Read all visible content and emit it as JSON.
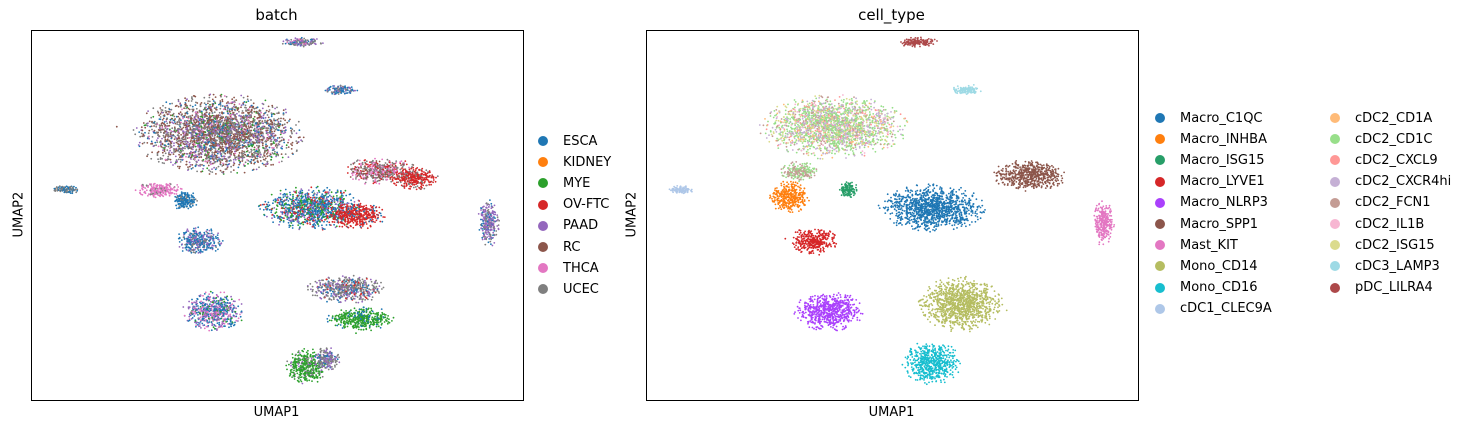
{
  "chart_data": [
    {
      "type": "scatter",
      "title": "batch",
      "xlabel": "UMAP1",
      "ylabel": "UMAP2",
      "legend_position": "right",
      "grid": false,
      "categories": [
        {
          "name": "ESCA",
          "color": "#1f77b4"
        },
        {
          "name": "KIDNEY",
          "color": "#ff7f0e"
        },
        {
          "name": "MYE",
          "color": "#2ca02c"
        },
        {
          "name": "OV-FTC",
          "color": "#d62728"
        },
        {
          "name": "PAAD",
          "color": "#9467bd"
        },
        {
          "name": "RC",
          "color": "#8c564b"
        },
        {
          "name": "THCA",
          "color": "#e377c2"
        },
        {
          "name": "UCEC",
          "color": "#7f7f7f"
        }
      ],
      "clusters": [
        {
          "x": 0.55,
          "y": 0.97,
          "rx": 0.04,
          "ry": 0.012,
          "mix": {
            "UCEC": 0.5,
            "ESCA": 0.2,
            "PAAD": 0.2,
            "THCA": 0.1
          }
        },
        {
          "x": 0.63,
          "y": 0.84,
          "rx": 0.03,
          "ry": 0.012,
          "mix": {
            "ESCA": 0.5,
            "PAAD": 0.3,
            "UCEC": 0.2
          }
        },
        {
          "x": 0.38,
          "y": 0.72,
          "rx": 0.16,
          "ry": 0.1,
          "mix": {
            "RC": 0.35,
            "UCEC": 0.3,
            "PAAD": 0.15,
            "ESCA": 0.1,
            "MYE": 0.05,
            "THCA": 0.05
          }
        },
        {
          "x": 0.71,
          "y": 0.62,
          "rx": 0.07,
          "ry": 0.035,
          "mix": {
            "UCEC": 0.35,
            "THCA": 0.25,
            "OV-FTC": 0.2,
            "RC": 0.2
          }
        },
        {
          "x": 0.78,
          "y": 0.6,
          "rx": 0.045,
          "ry": 0.03,
          "mix": {
            "OV-FTC": 0.8,
            "UCEC": 0.2
          }
        },
        {
          "x": 0.57,
          "y": 0.52,
          "rx": 0.1,
          "ry": 0.055,
          "mix": {
            "ESCA": 0.5,
            "MYE": 0.2,
            "PAAD": 0.15,
            "OV-FTC": 0.15
          }
        },
        {
          "x": 0.66,
          "y": 0.5,
          "rx": 0.055,
          "ry": 0.035,
          "mix": {
            "OV-FTC": 0.85,
            "ESCA": 0.15
          }
        },
        {
          "x": 0.26,
          "y": 0.57,
          "rx": 0.045,
          "ry": 0.02,
          "mix": {
            "THCA": 0.9,
            "UCEC": 0.1
          }
        },
        {
          "x": 0.31,
          "y": 0.54,
          "rx": 0.025,
          "ry": 0.025,
          "mix": {
            "ESCA": 0.9,
            "UCEC": 0.1
          }
        },
        {
          "x": 0.07,
          "y": 0.57,
          "rx": 0.025,
          "ry": 0.01,
          "mix": {
            "UCEC": 0.6,
            "ESCA": 0.4
          }
        },
        {
          "x": 0.34,
          "y": 0.43,
          "rx": 0.045,
          "ry": 0.035,
          "mix": {
            "ESCA": 0.55,
            "PAAD": 0.3,
            "UCEC": 0.15
          }
        },
        {
          "x": 0.93,
          "y": 0.48,
          "rx": 0.02,
          "ry": 0.06,
          "mix": {
            "PAAD": 0.5,
            "UCEC": 0.3,
            "ESCA": 0.2
          }
        },
        {
          "x": 0.64,
          "y": 0.3,
          "rx": 0.075,
          "ry": 0.035,
          "mix": {
            "UCEC": 0.5,
            "PAAD": 0.25,
            "ESCA": 0.15,
            "OV-FTC": 0.1
          }
        },
        {
          "x": 0.67,
          "y": 0.22,
          "rx": 0.065,
          "ry": 0.03,
          "mix": {
            "MYE": 0.85,
            "ESCA": 0.15
          }
        },
        {
          "x": 0.37,
          "y": 0.24,
          "rx": 0.06,
          "ry": 0.05,
          "mix": {
            "ESCA": 0.4,
            "PAAD": 0.3,
            "THCA": 0.2,
            "MYE": 0.1
          }
        },
        {
          "x": 0.56,
          "y": 0.09,
          "rx": 0.04,
          "ry": 0.045,
          "mix": {
            "MYE": 0.8,
            "PAAD": 0.1,
            "UCEC": 0.1
          }
        },
        {
          "x": 0.6,
          "y": 0.11,
          "rx": 0.025,
          "ry": 0.03,
          "mix": {
            "UCEC": 0.5,
            "PAAD": 0.3,
            "ESCA": 0.2
          }
        }
      ]
    },
    {
      "type": "scatter",
      "title": "cell_type",
      "xlabel": "UMAP1",
      "ylabel": "UMAP2",
      "legend_position": "right",
      "legend_columns": 2,
      "grid": false,
      "categories": [
        {
          "name": "Macro_C1QC",
          "color": "#1f77b4"
        },
        {
          "name": "Macro_INHBA",
          "color": "#ff7f0e"
        },
        {
          "name": "Macro_ISG15",
          "color": "#279e68"
        },
        {
          "name": "Macro_LYVE1",
          "color": "#d62728"
        },
        {
          "name": "Macro_NLRP3",
          "color": "#aa40fc"
        },
        {
          "name": "Macro_SPP1",
          "color": "#8c564b"
        },
        {
          "name": "Mast_KIT",
          "color": "#e377c2"
        },
        {
          "name": "Mono_CD14",
          "color": "#b5bd61"
        },
        {
          "name": "Mono_CD16",
          "color": "#17becf"
        },
        {
          "name": "cDC1_CLEC9A",
          "color": "#aec7e8"
        },
        {
          "name": "cDC2_CD1A",
          "color": "#ffbb78"
        },
        {
          "name": "cDC2_CD1C",
          "color": "#98df8a"
        },
        {
          "name": "cDC2_CXCL9",
          "color": "#ff9896"
        },
        {
          "name": "cDC2_CXCR4hi",
          "color": "#c5b0d5"
        },
        {
          "name": "cDC2_FCN1",
          "color": "#c49c94"
        },
        {
          "name": "cDC2_IL1B",
          "color": "#f7b6d2"
        },
        {
          "name": "cDC2_ISG15",
          "color": "#dbdb8d"
        },
        {
          "name": "cDC3_LAMP3",
          "color": "#9edae5"
        },
        {
          "name": "pDC_LILRA4",
          "color": "#ad494a"
        }
      ],
      "clusters": [
        {
          "x": 0.55,
          "y": 0.97,
          "rx": 0.04,
          "ry": 0.012,
          "mix": {
            "pDC_LILRA4": 1
          }
        },
        {
          "x": 0.65,
          "y": 0.84,
          "rx": 0.03,
          "ry": 0.012,
          "mix": {
            "cDC3_LAMP3": 1
          }
        },
        {
          "x": 0.38,
          "y": 0.74,
          "rx": 0.14,
          "ry": 0.08,
          "mix": {
            "cDC2_CD1C": 0.4,
            "cDC2_CXCR4hi": 0.2,
            "cDC2_ISG15": 0.15,
            "cDC2_FCN1": 0.1,
            "cDC2_CD1A": 0.05,
            "cDC2_IL1B": 0.05,
            "cDC2_CXCL9": 0.05
          }
        },
        {
          "x": 0.31,
          "y": 0.62,
          "rx": 0.035,
          "ry": 0.025,
          "mix": {
            "cDC2_FCN1": 0.6,
            "cDC2_CD1C": 0.4
          }
        },
        {
          "x": 0.41,
          "y": 0.57,
          "rx": 0.02,
          "ry": 0.02,
          "mix": {
            "Macro_ISG15": 1
          }
        },
        {
          "x": 0.78,
          "y": 0.61,
          "rx": 0.07,
          "ry": 0.04,
          "mix": {
            "Macro_SPP1": 1
          }
        },
        {
          "x": 0.58,
          "y": 0.52,
          "rx": 0.1,
          "ry": 0.06,
          "mix": {
            "Macro_C1QC": 1
          }
        },
        {
          "x": 0.29,
          "y": 0.55,
          "rx": 0.04,
          "ry": 0.04,
          "mix": {
            "Macro_INHBA": 1
          }
        },
        {
          "x": 0.07,
          "y": 0.57,
          "rx": 0.025,
          "ry": 0.01,
          "mix": {
            "cDC1_CLEC9A": 1
          }
        },
        {
          "x": 0.34,
          "y": 0.43,
          "rx": 0.045,
          "ry": 0.035,
          "mix": {
            "Macro_LYVE1": 1
          }
        },
        {
          "x": 0.93,
          "y": 0.48,
          "rx": 0.02,
          "ry": 0.06,
          "mix": {
            "Mast_KIT": 1
          }
        },
        {
          "x": 0.64,
          "y": 0.26,
          "rx": 0.08,
          "ry": 0.07,
          "mix": {
            "Mono_CD14": 1
          }
        },
        {
          "x": 0.37,
          "y": 0.24,
          "rx": 0.065,
          "ry": 0.05,
          "mix": {
            "Macro_NLRP3": 1
          }
        },
        {
          "x": 0.58,
          "y": 0.1,
          "rx": 0.055,
          "ry": 0.055,
          "mix": {
            "Mono_CD16": 1
          }
        }
      ]
    }
  ]
}
